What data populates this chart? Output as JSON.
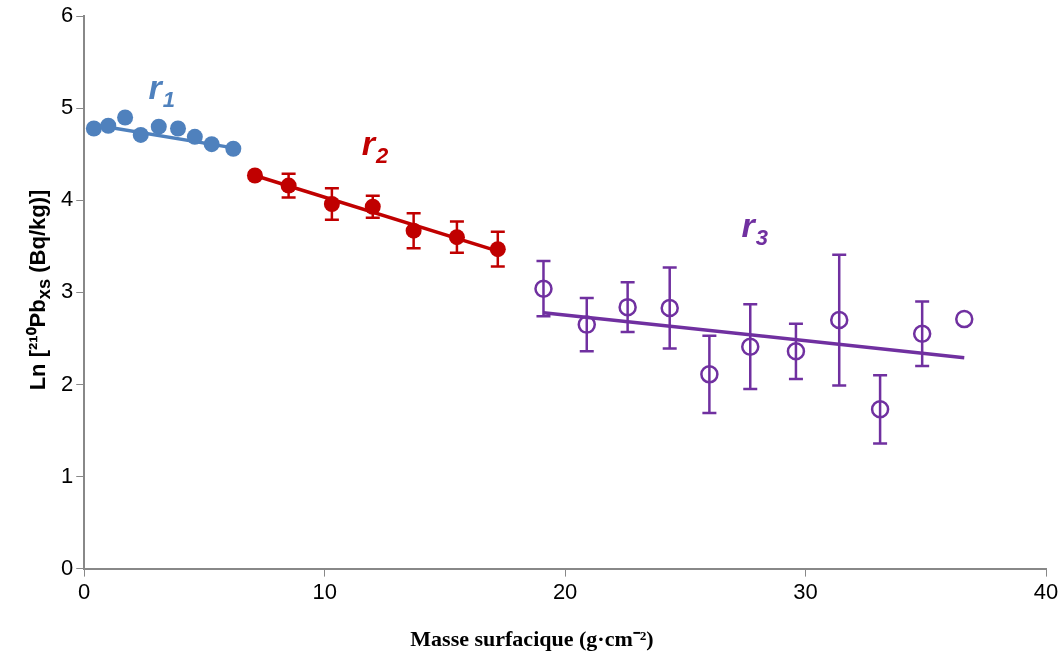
{
  "chart_data": {
    "type": "scatter",
    "xlabel": "Masse surfacique (g·cm⁻²)",
    "ylabel": "Ln [²¹⁰Pb$_{xs}$ (Bq/kg)]",
    "xlim": [
      0,
      40
    ],
    "xticks": [
      0,
      10,
      20,
      30,
      40
    ],
    "ylim": [
      0,
      6
    ],
    "yticks": [
      0,
      1,
      2,
      3,
      4,
      5,
      6
    ],
    "grid": false,
    "legend": false,
    "marker": "circle",
    "series": [
      {
        "name": "r$_{1}$",
        "color": "#4f81bd",
        "x": [
          0.4,
          1.0,
          1.7,
          2.35,
          3.1,
          3.9,
          4.6,
          5.3,
          6.2
        ],
        "values": [
          4.78,
          4.81,
          4.9,
          4.71,
          4.8,
          4.78,
          4.69,
          4.61,
          4.56
        ]
      },
      {
        "type": "line",
        "marker": "none",
        "color": "#4f81bd",
        "x": [
          0.2,
          6.2
        ],
        "values": [
          4.83,
          4.57
        ]
      },
      {
        "name": "r$_{2}$",
        "color": "#c00000",
        "x": [
          7.1,
          8.5,
          10.3,
          12.0,
          13.7,
          15.5,
          17.2
        ],
        "values": [
          4.27,
          4.16,
          3.96,
          3.93,
          3.67,
          3.6,
          3.47
        ],
        "errors": [
          0.03,
          0.13,
          0.17,
          0.12,
          0.19,
          0.17,
          0.19
        ]
      },
      {
        "type": "line",
        "marker": "none",
        "color": "#c00000",
        "x": [
          7.1,
          17.3
        ],
        "values": [
          4.27,
          3.44
        ]
      },
      {
        "name": "r$_{3}$",
        "color": "#7030a0",
        "x": [
          19.1,
          20.9,
          22.6,
          24.35,
          26.0,
          27.7,
          29.6,
          31.4,
          33.1,
          34.85,
          36.6
        ],
        "values": [
          3.04,
          2.65,
          2.84,
          2.83,
          2.11,
          2.41,
          2.36,
          2.7,
          1.73,
          2.55,
          2.71
        ],
        "errors": [
          0.3,
          0.29,
          0.27,
          0.44,
          0.42,
          0.46,
          0.3,
          0.71,
          0.37,
          0.35,
          null
        ]
      },
      {
        "type": "line",
        "marker": "none",
        "color": "#7030a0",
        "x": [
          19.1,
          36.6
        ],
        "values": [
          2.78,
          2.29
        ]
      }
    ]
  }
}
